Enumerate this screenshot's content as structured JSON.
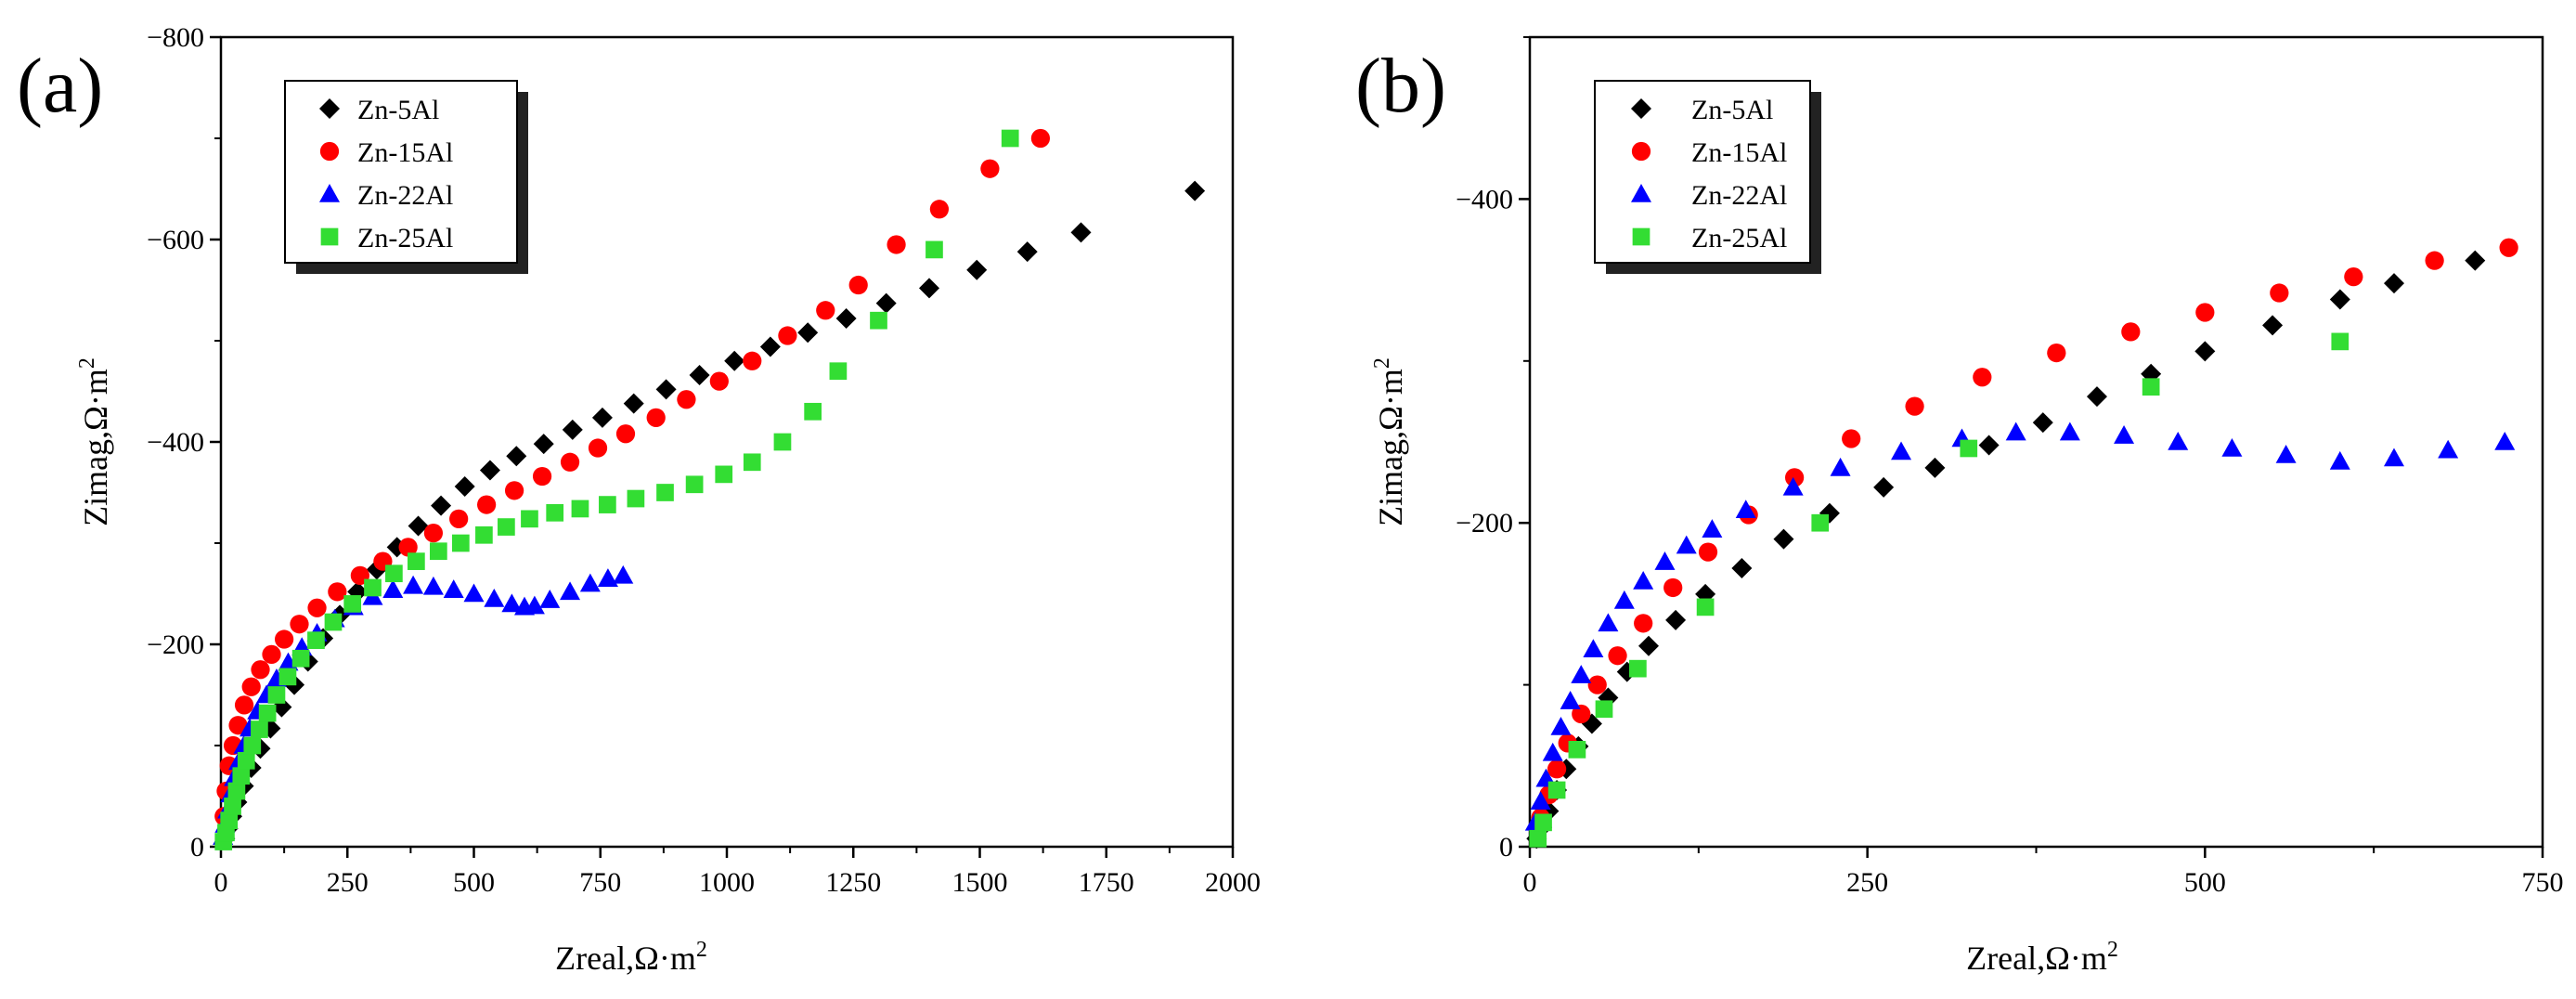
{
  "colors": {
    "zn5": "#000000",
    "zn15": "#ff0000",
    "zn22": "#0000ff",
    "zn25": "#33dd33"
  },
  "chart_data": [
    {
      "type": "scatter",
      "panel_label": "(a)",
      "xlabel": "Zreal,Ω·m",
      "ylabel": "Zimag,Ω·m",
      "label_exponent": "2",
      "xlim": [
        0,
        2000
      ],
      "ylim": [
        0,
        -800
      ],
      "xticks": [
        0,
        250,
        500,
        750,
        1000,
        1250,
        1500,
        1750,
        2000
      ],
      "yticks": [
        0,
        -200,
        -400,
        -600,
        -800
      ],
      "xtick_labels": [
        "0",
        "250",
        "500",
        "750",
        "1000",
        "1250",
        "1500",
        "1750",
        "2000"
      ],
      "ytick_labels": [
        "0",
        "−200",
        "−400",
        "−600",
        "−800"
      ],
      "legend_position": "top-left",
      "series": [
        {
          "name": "Zn-5Al",
          "marker": "diamond",
          "color_key": "zn5",
          "x": [
            8,
            14,
            22,
            32,
            45,
            60,
            78,
            98,
            120,
            145,
            172,
            202,
            235,
            270,
            308,
            348,
            390,
            435,
            482,
            532,
            584,
            638,
            695,
            754,
            816,
            880,
            946,
            1015,
            1086,
            1160,
            1236,
            1315,
            1400,
            1494,
            1594,
            1700,
            1925
          ],
          "y": [
            -8,
            -18,
            -30,
            -44,
            -60,
            -78,
            -97,
            -117,
            -138,
            -160,
            -183,
            -206,
            -229,
            -252,
            -274,
            -296,
            -317,
            -337,
            -356,
            -372,
            -386,
            -398,
            -412,
            -424,
            -438,
            -452,
            -466,
            -480,
            -494,
            -508,
            -522,
            -537,
            -552,
            -570,
            -588,
            -607,
            -648
          ]
        },
        {
          "name": "Zn-15Al",
          "marker": "circle",
          "color_key": "zn15",
          "x": [
            6,
            10,
            16,
            24,
            34,
            46,
            60,
            78,
            100,
            125,
            155,
            190,
            230,
            275,
            320,
            370,
            420,
            470,
            525,
            580,
            635,
            690,
            745,
            800,
            860,
            920,
            985,
            1050,
            1120,
            1195,
            1260,
            1335,
            1420,
            1520,
            1620
          ],
          "y": [
            -30,
            -55,
            -80,
            -100,
            -120,
            -140,
            -158,
            -175,
            -190,
            -205,
            -220,
            -236,
            -252,
            -268,
            -282,
            -296,
            -310,
            -324,
            -338,
            -352,
            -366,
            -380,
            -394,
            -408,
            -424,
            -442,
            -460,
            -480,
            -505,
            -530,
            -555,
            -595,
            -630,
            -670,
            -700
          ]
        },
        {
          "name": "Zn-22Al",
          "marker": "triangle",
          "color_key": "zn22",
          "x": [
            4,
            8,
            13,
            19,
            26,
            35,
            45,
            57,
            72,
            90,
            110,
            133,
            160,
            190,
            225,
            262,
            300,
            340,
            380,
            420,
            460,
            500,
            540,
            575,
            600,
            620,
            650,
            690,
            730,
            765,
            795
          ],
          "y": [
            -10,
            -22,
            -36,
            -52,
            -68,
            -84,
            -100,
            -117,
            -134,
            -150,
            -166,
            -182,
            -197,
            -211,
            -225,
            -237,
            -247,
            -254,
            -258,
            -257,
            -254,
            -250,
            -245,
            -240,
            -237,
            -238,
            -244,
            -252,
            -260,
            -265,
            -268
          ]
        },
        {
          "name": "Zn-25Al",
          "marker": "square",
          "color_key": "zn25",
          "x": [
            5,
            10,
            16,
            23,
            31,
            40,
            50,
            62,
            76,
            92,
            110,
            132,
            158,
            188,
            222,
            260,
            300,
            342,
            386,
            430,
            474,
            520,
            564,
            610,
            660,
            710,
            764,
            820,
            878,
            936,
            994,
            1050,
            1110,
            1170,
            1220,
            1300,
            1410,
            1560
          ],
          "y": [
            -5,
            -14,
            -26,
            -40,
            -55,
            -70,
            -85,
            -100,
            -116,
            -132,
            -150,
            -168,
            -186,
            -204,
            -222,
            -240,
            -256,
            -270,
            -282,
            -292,
            -300,
            -308,
            -316,
            -324,
            -330,
            -334,
            -338,
            -344,
            -350,
            -358,
            -368,
            -380,
            -400,
            -430,
            -470,
            -520,
            -590,
            -700
          ]
        }
      ],
      "legend": [
        "Zn-5Al",
        "Zn-15Al",
        "Zn-22Al",
        "Zn-25Al"
      ]
    },
    {
      "type": "scatter",
      "panel_label": "(b)",
      "xlabel": "Zreal,Ω·m",
      "ylabel": "Zimag,Ω·m",
      "label_exponent": "2",
      "xlim": [
        0,
        750
      ],
      "ylim": [
        0,
        -500
      ],
      "xticks": [
        0,
        250,
        500,
        750
      ],
      "yticks": [
        0,
        -200,
        -400
      ],
      "xtick_labels": [
        "0",
        "250",
        "500",
        "750"
      ],
      "ytick_labels": [
        "0",
        "−200",
        "−400"
      ],
      "legend_position": "top-left",
      "series": [
        {
          "name": "Zn-5Al",
          "marker": "diamond",
          "color_key": "zn5",
          "x": [
            5,
            9,
            14,
            20,
            27,
            36,
            46,
            58,
            72,
            88,
            108,
            130,
            157,
            188,
            222,
            262,
            300,
            340,
            380,
            420,
            460,
            500,
            550,
            600,
            640,
            700
          ],
          "y": [
            -5,
            -12,
            -22,
            -35,
            -48,
            -62,
            -76,
            -92,
            -108,
            -124,
            -140,
            -156,
            -172,
            -190,
            -206,
            -222,
            -234,
            -248,
            -262,
            -278,
            -292,
            -306,
            -322,
            -338,
            -348,
            -362
          ]
        },
        {
          "name": "Zn-15Al",
          "marker": "circle",
          "color_key": "zn15",
          "x": [
            8,
            14,
            20,
            28,
            38,
            50,
            65,
            84,
            106,
            132,
            162,
            196,
            238,
            285,
            335,
            390,
            445,
            500,
            555,
            610,
            670,
            725
          ],
          "y": [
            -18,
            -32,
            -48,
            -64,
            -82,
            -100,
            -118,
            -138,
            -160,
            -182,
            -205,
            -228,
            -252,
            -272,
            -290,
            -305,
            -318,
            -330,
            -342,
            -352,
            -362,
            -370
          ]
        },
        {
          "name": "Zn-22Al",
          "marker": "triangle",
          "color_key": "zn22",
          "x": [
            4,
            8,
            12,
            17,
            23,
            30,
            38,
            47,
            58,
            70,
            84,
            100,
            116,
            135,
            160,
            195,
            230,
            275,
            320,
            360,
            400,
            440,
            480,
            520,
            560,
            600,
            640,
            680,
            722
          ],
          "y": [
            -15,
            -28,
            -42,
            -58,
            -74,
            -90,
            -106,
            -122,
            -138,
            -152,
            -164,
            -176,
            -186,
            -196,
            -208,
            -222,
            -234,
            -244,
            -252,
            -256,
            -256,
            -254,
            -250,
            -246,
            -242,
            -238,
            -240,
            -245,
            -250
          ]
        },
        {
          "name": "Zn-25Al",
          "marker": "square",
          "color_key": "zn25",
          "x": [
            6,
            10,
            20,
            35,
            55,
            80,
            130,
            215,
            325,
            460,
            600
          ],
          "y": [
            -5,
            -15,
            -35,
            -60,
            -85,
            -110,
            -148,
            -200,
            -246,
            -284,
            -312
          ]
        }
      ],
      "legend": [
        "Zn-5Al",
        "Zn-15Al",
        "Zn-22Al",
        "Zn-25Al"
      ]
    }
  ]
}
